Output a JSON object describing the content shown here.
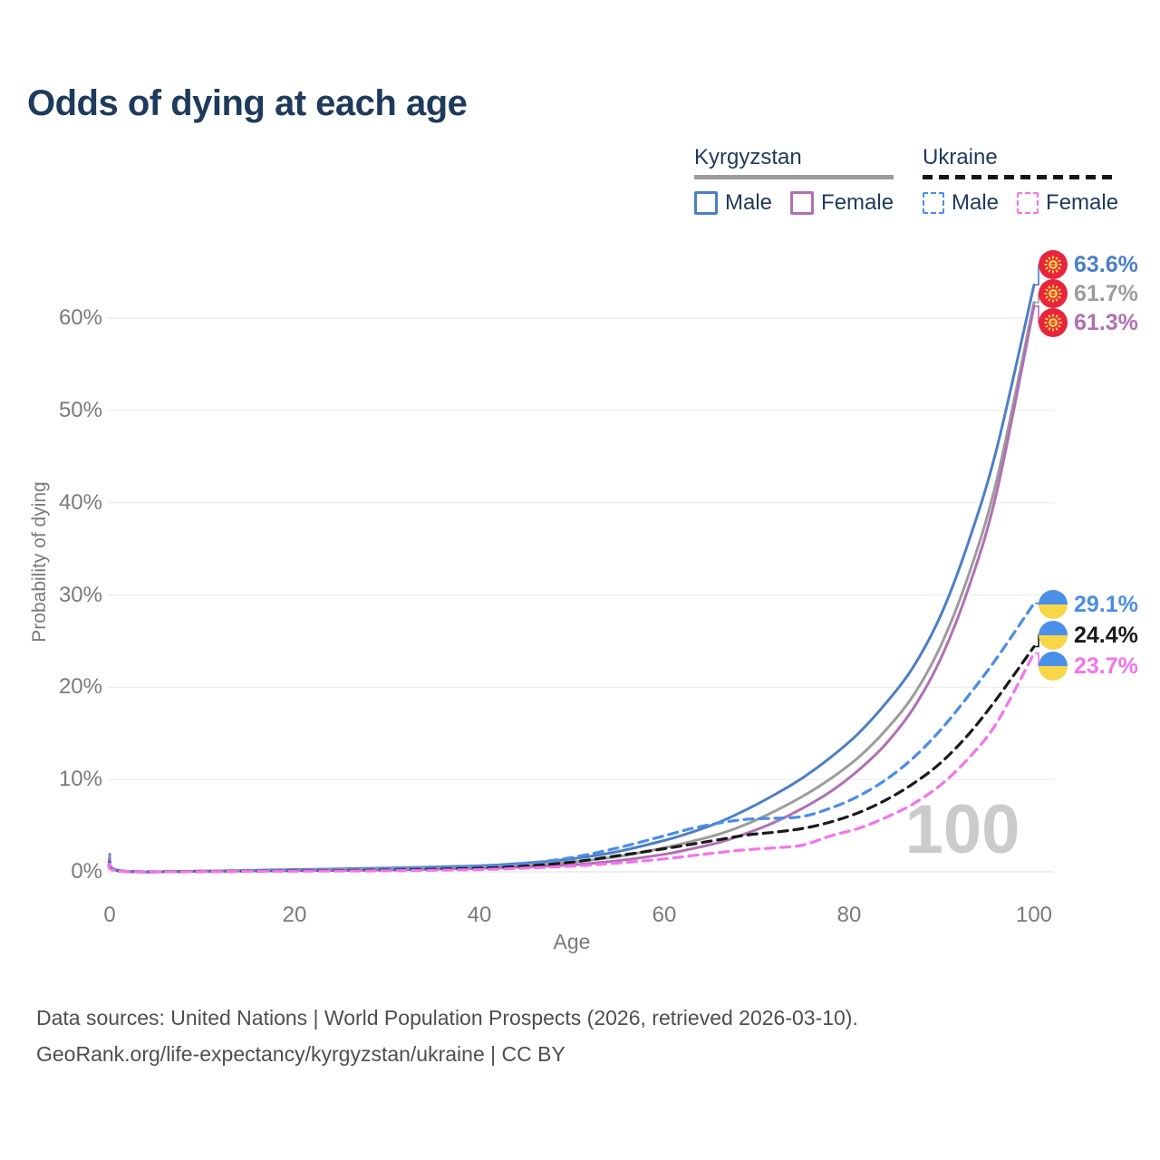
{
  "title": "Odds of dying at each age",
  "watermark": "100",
  "legend": {
    "kyrgyzstan": {
      "label": "Kyrgyzstan",
      "male": "Male",
      "female": "Female"
    },
    "ukraine": {
      "label": "Ukraine",
      "male": "Male",
      "female": "Female"
    }
  },
  "yaxis": {
    "label": "Probability of dying",
    "ticks": [
      "0%",
      "10%",
      "20%",
      "30%",
      "40%",
      "50%",
      "60%"
    ]
  },
  "xaxis": {
    "label": "Age",
    "ticks": [
      "0",
      "20",
      "40",
      "60",
      "80",
      "100"
    ]
  },
  "footer": {
    "line1": "Data sources: United Nations | World Population Prospects (2026, retrieved 2026-03-10).",
    "line2": "GeoRank.org/life-expectancy/kyrgyzstan/ukraine | CC BY"
  },
  "colors": {
    "title_text": "#1e3a5c",
    "axis_text": "#7a7a7a",
    "gridline": "#ececec",
    "kg_flag_red": "#e8253d",
    "kg_flag_yellow": "#ffd24a",
    "ua_flag_blue": "#4a90e8",
    "ua_flag_yellow": "#f7d648"
  },
  "chart_data": {
    "type": "line",
    "title": "Odds of dying at each age",
    "xlabel": "Age",
    "ylabel": "Probability of dying",
    "xlim": [
      0,
      100
    ],
    "ylim": [
      0,
      66
    ],
    "grid": "horizontal",
    "legend_position": "top-right",
    "x": [
      0,
      1,
      10,
      20,
      30,
      40,
      45,
      50,
      55,
      60,
      63,
      66,
      69,
      72,
      75,
      78,
      81,
      84,
      87,
      90,
      93,
      96,
      100
    ],
    "series": [
      {
        "name": "Kyrgyzstan male",
        "style": "solid",
        "color": "#4c7fc6",
        "flag": "kg",
        "end_label": "63.6%",
        "values": [
          1.9,
          0.15,
          0.08,
          0.25,
          0.4,
          0.65,
          0.95,
          1.4,
          2.2,
          3.4,
          4.3,
          5.4,
          6.8,
          8.4,
          10.2,
          12.4,
          15.0,
          18.3,
          22.3,
          28.0,
          36.0,
          46.0,
          63.6
        ]
      },
      {
        "name": "Kyrgyzstan total",
        "style": "solid",
        "color": "#9c9c9c",
        "flag": "kg",
        "end_label": "61.7%",
        "values": [
          1.7,
          0.13,
          0.07,
          0.18,
          0.3,
          0.5,
          0.72,
          1.05,
          1.65,
          2.6,
          3.3,
          4.1,
          5.2,
          6.6,
          8.2,
          10.1,
          12.4,
          15.4,
          19.2,
          24.7,
          32.4,
          42.6,
          61.7
        ]
      },
      {
        "name": "Kyrgyzstan female",
        "style": "solid",
        "color": "#b06fb4",
        "flag": "kg",
        "end_label": "61.3%",
        "values": [
          1.5,
          0.11,
          0.06,
          0.12,
          0.2,
          0.38,
          0.52,
          0.75,
          1.2,
          1.9,
          2.5,
          3.2,
          4.2,
          5.4,
          6.9,
          8.7,
          11.0,
          13.9,
          17.8,
          23.3,
          31.0,
          41.3,
          61.3
        ]
      },
      {
        "name": "Ukraine male",
        "style": "dashed",
        "color": "#4a8de8",
        "flag": "ua",
        "end_label": "29.1%",
        "values": [
          1.2,
          0.1,
          0.05,
          0.15,
          0.28,
          0.55,
          0.9,
          1.55,
          2.6,
          3.9,
          4.7,
          5.3,
          5.7,
          5.8,
          6.0,
          6.9,
          8.2,
          10.0,
          12.4,
          15.5,
          19.2,
          23.2,
          29.1
        ]
      },
      {
        "name": "Ukraine total",
        "style": "dashed",
        "color": "#1a1a1a",
        "flag": "ua",
        "end_label": "24.4%",
        "values": [
          1.0,
          0.09,
          0.04,
          0.1,
          0.18,
          0.38,
          0.62,
          1.05,
          1.75,
          2.5,
          3.0,
          3.5,
          4.0,
          4.3,
          4.7,
          5.4,
          6.4,
          7.8,
          9.6,
          11.9,
          15.0,
          18.8,
          24.4
        ]
      },
      {
        "name": "Ukraine female",
        "style": "dashed",
        "color": "#f672ec",
        "flag": "ua",
        "end_label": "23.7%",
        "values": [
          0.9,
          0.08,
          0.03,
          0.07,
          0.12,
          0.25,
          0.4,
          0.62,
          0.95,
          1.4,
          1.75,
          2.1,
          2.4,
          2.6,
          2.9,
          3.9,
          4.7,
          5.9,
          7.4,
          9.5,
          12.4,
          16.2,
          23.7
        ]
      }
    ]
  }
}
